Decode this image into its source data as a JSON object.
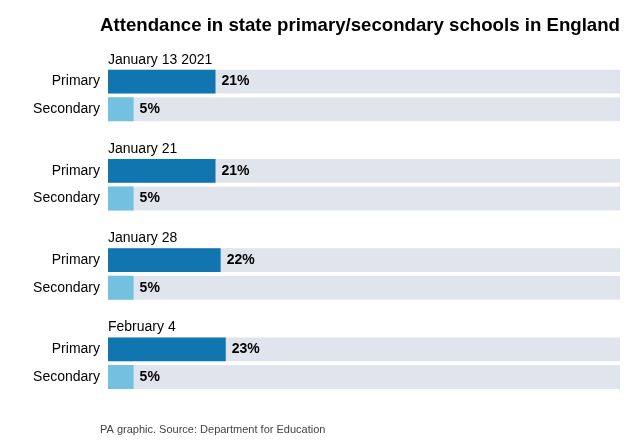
{
  "chart_data": {
    "type": "bar",
    "orientation": "horizontal",
    "title": "Attendance in state primary/secondary schools in England",
    "annotations": [
      "PA graphic. Source: Department for Education"
    ],
    "categories": [
      "January 13 2021",
      "January 21",
      "January 28",
      "February 4"
    ],
    "series": [
      {
        "name": "Primary",
        "color": "#1175B0",
        "values": [
          21,
          21,
          22,
          23
        ],
        "value_labels": [
          "21%",
          "21%",
          "22%",
          "23%"
        ]
      },
      {
        "name": "Secondary",
        "color": "#74C0E0",
        "values": [
          5,
          5,
          5,
          5
        ],
        "value_labels": [
          "5%",
          "5%",
          "5%",
          "5%"
        ]
      }
    ],
    "xlim": [
      0,
      100
    ],
    "grid": false,
    "tick_labels": false,
    "data_labels": true
  }
}
